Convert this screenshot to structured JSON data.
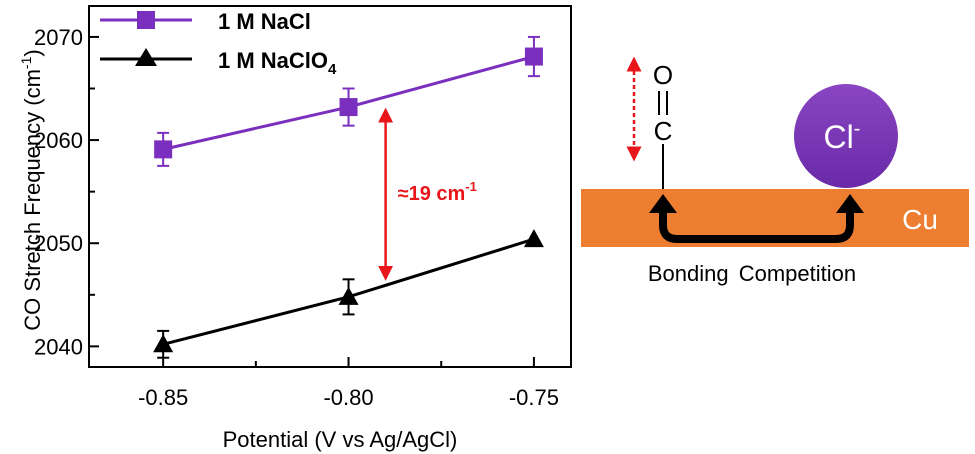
{
  "chart_data": {
    "type": "line",
    "xlabel": "Potential (V vs Ag/AgCl)",
    "ylabel": "CO Stretch Frequency (cm",
    "ylabel_sup": "-1",
    "ylabel_end": ")",
    "xlim": [
      -0.87,
      -0.74
    ],
    "ylim": [
      2038,
      2073
    ],
    "xticks": [
      -0.85,
      -0.8,
      -0.75
    ],
    "xtick_labels": [
      "-0.85",
      "-0.80",
      "-0.75"
    ],
    "yticks": [
      2040,
      2050,
      2060,
      2070
    ],
    "ytick_labels": [
      "2040",
      "2050",
      "2060",
      "2070"
    ],
    "series": [
      {
        "name": "1 M NaCl",
        "marker": "square",
        "color": "#7b2fbe",
        "x": [
          -0.85,
          -0.8,
          -0.75
        ],
        "y": [
          2059.1,
          2063.2,
          2068.1
        ],
        "err": [
          1.6,
          1.8,
          1.9
        ]
      },
      {
        "name": "1 M NaClO",
        "name_sub": "4",
        "marker": "triangle",
        "color": "#000000",
        "x": [
          -0.85,
          -0.8,
          -0.75
        ],
        "y": [
          2040.2,
          2044.8,
          2050.4
        ],
        "err": [
          1.3,
          1.7,
          0.0
        ]
      }
    ],
    "annotation": {
      "text": "≈19 cm",
      "sup": "-1",
      "color": "#e8161b",
      "x": -0.79,
      "y_top": 2063.2,
      "y_bottom": 2046.5
    },
    "legend": "top-left"
  },
  "schematic": {
    "surface_label": "Cu",
    "ion_label": "Cl",
    "ion_charge": "-",
    "molecule_top": "O",
    "molecule_bottom": "C",
    "caption": "Bonding Competition",
    "surface_color": "#ed7d31",
    "ion_color": "#7030a0",
    "arrow_color": "#e8161b"
  }
}
